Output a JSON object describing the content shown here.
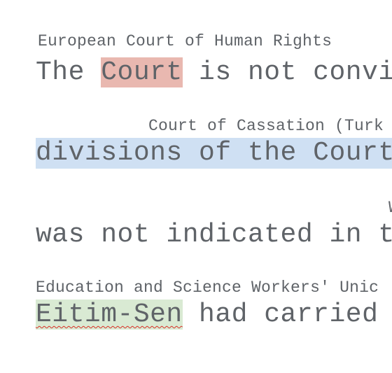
{
  "blocks": [
    {
      "label": "European Court of Human Rights",
      "before": "The ",
      "entity": "Court",
      "after": " is not convi",
      "highlight_color": "#e9b8b0"
    },
    {
      "label": "Court of Cassation (Turk",
      "entity": "divisions of the Court",
      "highlight_color": "#cfe0f3"
    },
    {
      "label": "W",
      "text": "was not indicated in t"
    },
    {
      "label": "Education and Science Workers' Unic",
      "entity": "Eitim-Sen",
      "after": " had carried ",
      "highlight_color": "#d9ead3"
    }
  ]
}
